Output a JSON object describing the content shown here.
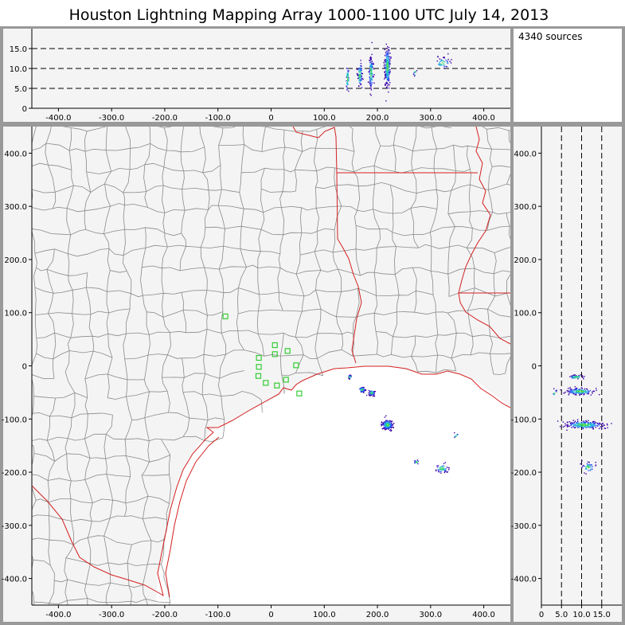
{
  "header": {
    "title": "Houston Lightning Mapping Array   1000-1100 UTC  July 14, 2013",
    "source_count": "4340 sources"
  },
  "colors": {
    "panel_background": "#f4f4f4",
    "frame": "#999999",
    "county_lines": "#8a8a8a",
    "state_lines": "#d42020",
    "coastline": "#d42020",
    "stations": "#33cc33",
    "source_palette": [
      "#3a00a8",
      "#2a4cf0",
      "#20b0e0",
      "#30d090",
      "#60e040"
    ]
  },
  "chart_data": [
    {
      "type": "scatter",
      "panel": "altitude-vs-east-west",
      "xlim": [
        -450,
        450
      ],
      "ylim": [
        0,
        20
      ],
      "xticks": [
        "-400.0",
        "-300.0",
        "-200.0",
        "-100.0",
        "0",
        "100.0",
        "200.0",
        "300.0",
        "400.0"
      ],
      "yticks": [
        "0",
        "5.0",
        "10.0",
        "15.0"
      ],
      "reference_lines_y": [
        5,
        10,
        15
      ],
      "clusters": [
        {
          "x": 143,
          "y": 7.5,
          "dx": 3,
          "dy": 3.2,
          "n": 50
        },
        {
          "x": 166,
          "y": 8.5,
          "dx": 4,
          "dy": 3.2,
          "n": 80
        },
        {
          "x": 187,
          "y": 9.0,
          "dx": 4,
          "dy": 4.0,
          "n": 110
        },
        {
          "x": 218,
          "y": 10.5,
          "dx": 5,
          "dy": 5.0,
          "n": 220
        },
        {
          "x": 270,
          "y": 9.0,
          "dx": 3,
          "dy": 1.0,
          "n": 10
        },
        {
          "x": 322,
          "y": 11.5,
          "dx": 14,
          "dy": 1.4,
          "n": 40
        }
      ]
    },
    {
      "type": "scatter",
      "panel": "plan-view",
      "xlim": [
        -450,
        450
      ],
      "ylim": [
        -450,
        450
      ],
      "xticks": [
        "-400.0",
        "-300.0",
        "-200.0",
        "-100.0",
        "0",
        "100.0",
        "200.0",
        "300.0",
        "400.0"
      ],
      "yticks": [
        "-400.0",
        "-300.0",
        "-200.0",
        "-100.0",
        "0",
        "100.0",
        "200.0",
        "300.0",
        "400.0"
      ],
      "stations": [
        [
          -86,
          93
        ],
        [
          -23,
          15
        ],
        [
          -23,
          -2
        ],
        [
          -24,
          -19
        ],
        [
          -10,
          -32
        ],
        [
          7,
          22
        ],
        [
          7,
          39
        ],
        [
          31,
          28
        ],
        [
          47,
          1
        ],
        [
          28,
          -26
        ],
        [
          11,
          -37
        ],
        [
          53,
          -52
        ]
      ],
      "clusters": [
        {
          "x": 147,
          "y": -20,
          "dx": 3,
          "dy": 4,
          "n": 20
        },
        {
          "x": 170,
          "y": -44,
          "dx": 6,
          "dy": 5,
          "n": 60
        },
        {
          "x": 188,
          "y": -50,
          "dx": 6,
          "dy": 5,
          "n": 60
        },
        {
          "x": 218,
          "y": -110,
          "dx": 10,
          "dy": 9,
          "n": 200
        },
        {
          "x": 273,
          "y": -180,
          "dx": 5,
          "dy": 4,
          "n": 15
        },
        {
          "x": 320,
          "y": -192,
          "dx": 12,
          "dy": 8,
          "n": 50
        },
        {
          "x": 347,
          "y": -130,
          "dx": 4,
          "dy": 6,
          "n": 8
        }
      ]
    },
    {
      "type": "scatter",
      "panel": "north-south-vs-altitude",
      "xlim": [
        0,
        20
      ],
      "ylim": [
        -450,
        450
      ],
      "xticks": [
        "0",
        "5.0",
        "10.0",
        "15.0"
      ],
      "yticks": [
        "-400.0",
        "-300.0",
        "-200.0",
        "-100.0",
        "0",
        "100.0",
        "200.0",
        "300.0",
        "400.0"
      ],
      "reference_lines_x": [
        5,
        10,
        15
      ],
      "clusters": [
        {
          "x": 8.5,
          "y": -20,
          "dx": 1.8,
          "dy": 3,
          "n": 60
        },
        {
          "x": 9.5,
          "y": -47,
          "dx": 3.5,
          "dy": 6,
          "n": 140
        },
        {
          "x": 10.5,
          "y": -110,
          "dx": 4.5,
          "dy": 7,
          "n": 230
        },
        {
          "x": 11.5,
          "y": -190,
          "dx": 1.5,
          "dy": 9,
          "n": 45
        },
        {
          "x": 3.2,
          "y": -50,
          "dx": 0.6,
          "dy": 8,
          "n": 8
        }
      ]
    }
  ]
}
